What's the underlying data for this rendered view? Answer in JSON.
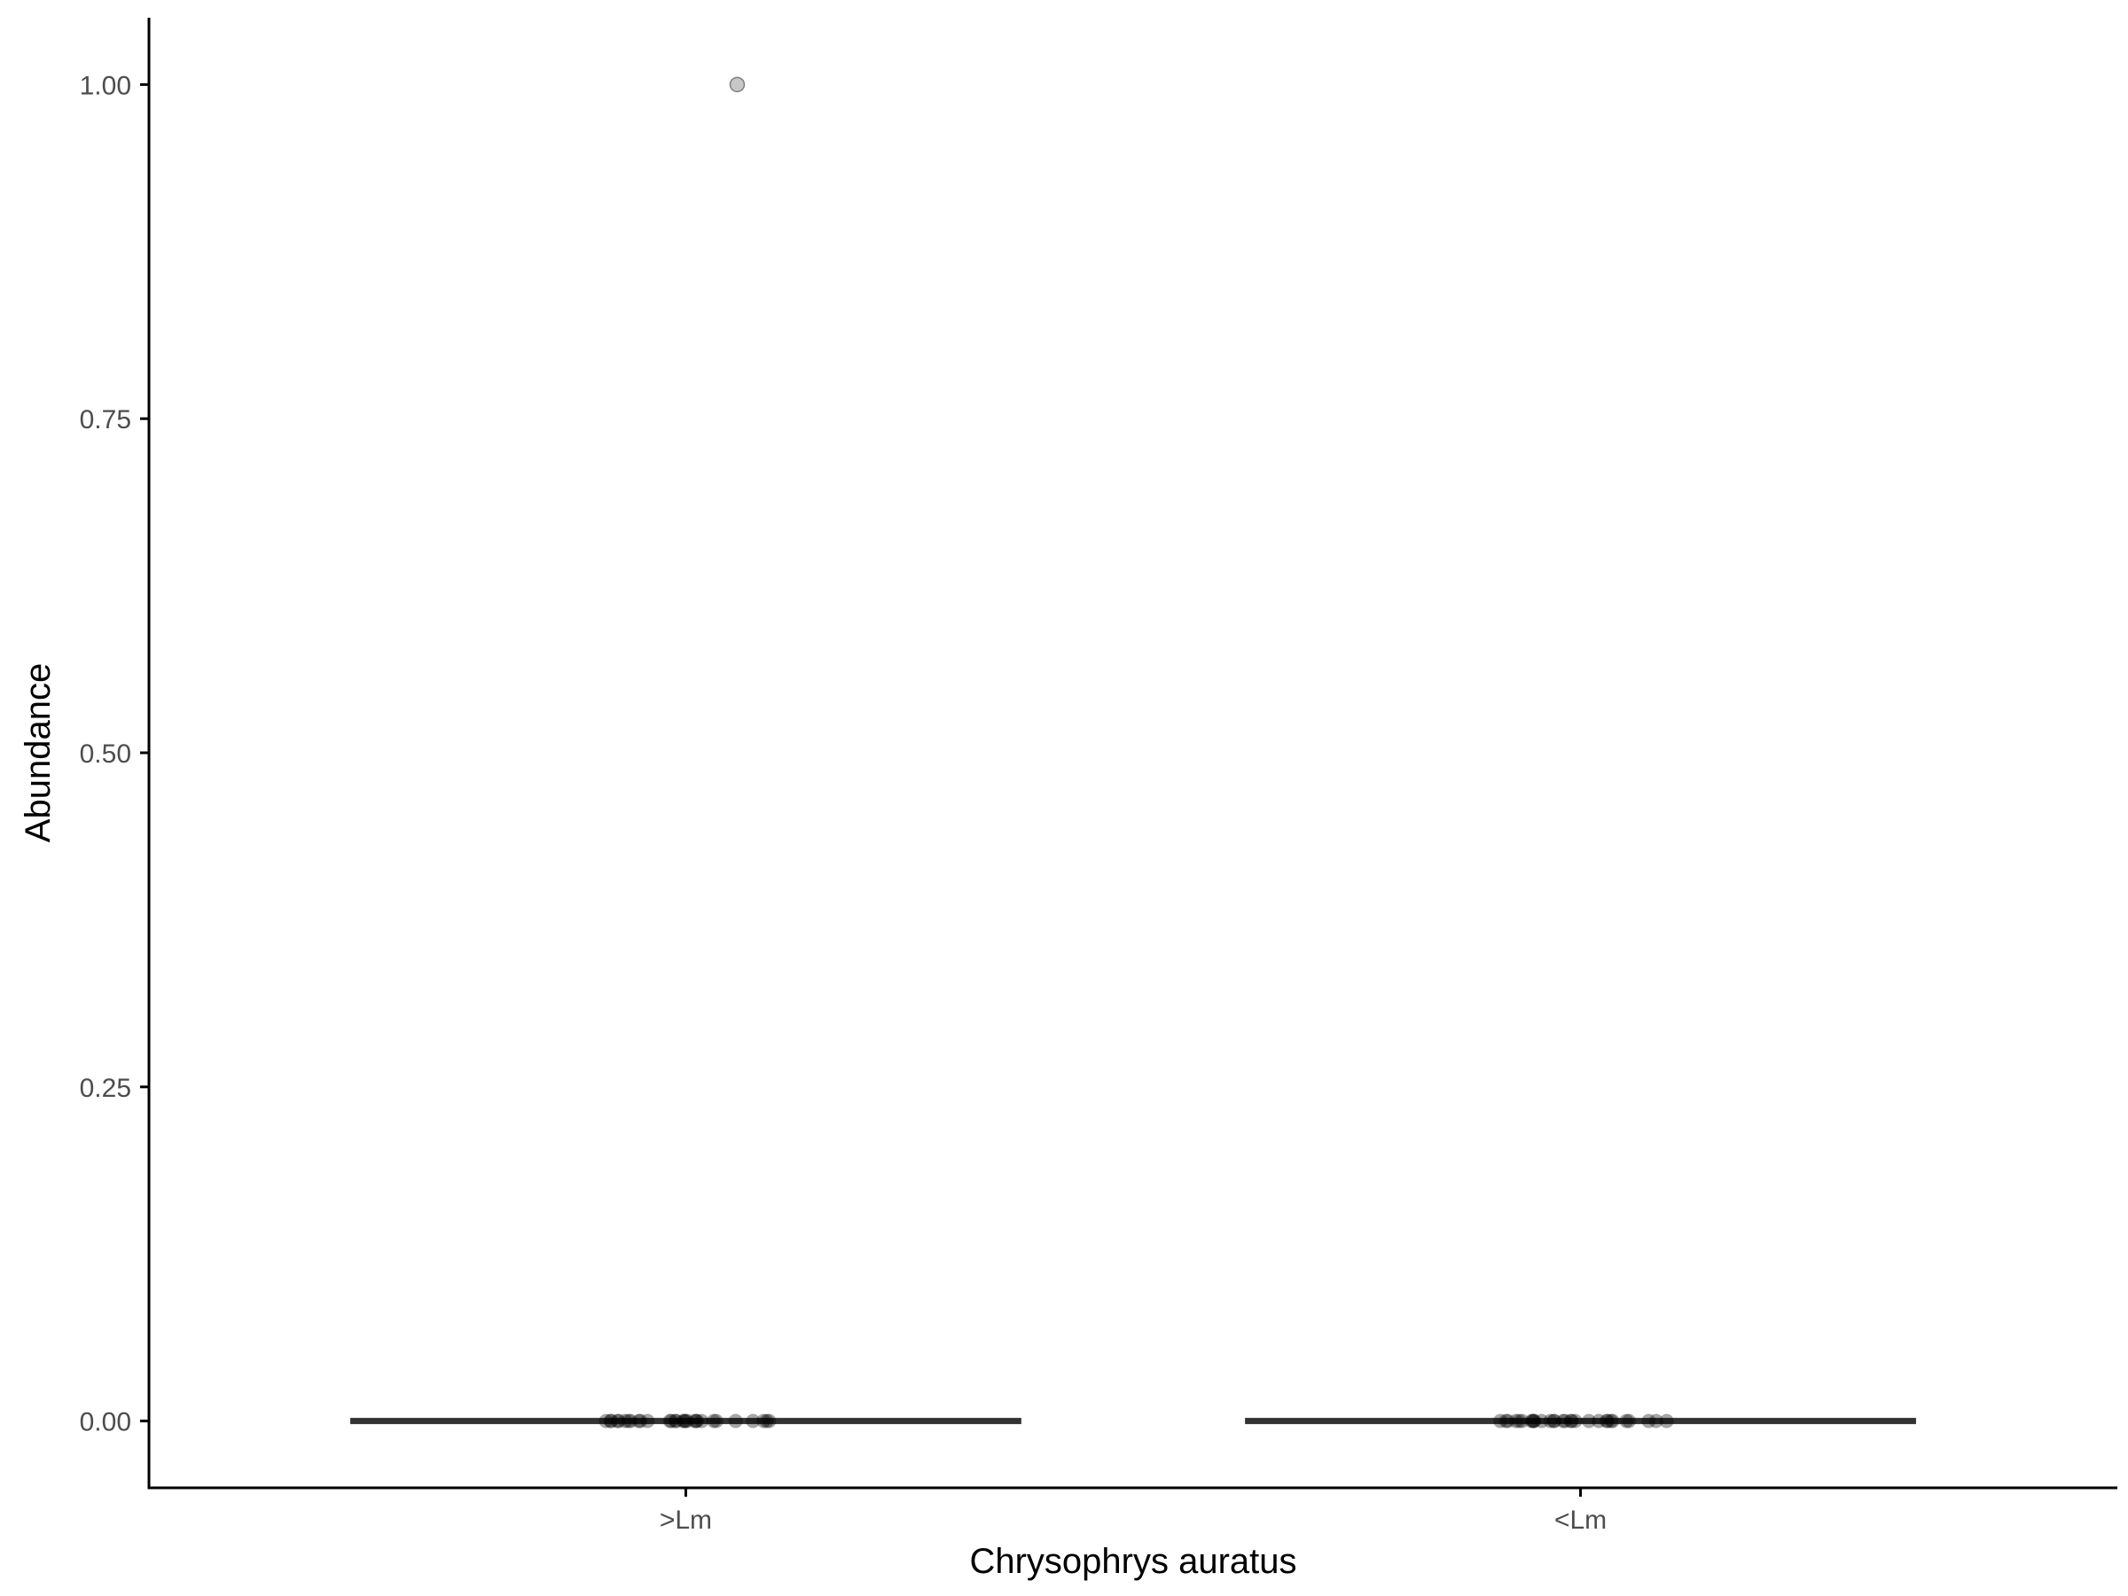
{
  "chart_data": {
    "type": "boxplot",
    "title": "",
    "xlabel": "Chrysophrys auratus",
    "ylabel": "Abundance",
    "categories": [
      ">Lm",
      "<Lm"
    ],
    "ylim": [
      -0.05,
      1.05
    ],
    "yticks": [
      0.0,
      0.25,
      0.5,
      0.75,
      1.0
    ],
    "ytick_labels": [
      "0.00",
      "0.25",
      "0.50",
      "0.75",
      "1.00"
    ],
    "grid": false,
    "boxes": [
      {
        "category": ">Lm",
        "min": 0,
        "q1": 0,
        "median": 0,
        "q3": 0,
        "max": 0,
        "outliers": [
          1.0
        ]
      },
      {
        "category": "<Lm",
        "min": 0,
        "q1": 0,
        "median": 0,
        "q3": 0,
        "max": 0,
        "outliers": []
      }
    ],
    "points": [
      {
        "category": ">Lm",
        "values": [
          0,
          0,
          0,
          0,
          0,
          0,
          0,
          0,
          0,
          0,
          0,
          0,
          0,
          0,
          0,
          0,
          0,
          0,
          0,
          0,
          0,
          0,
          0,
          0,
          0,
          0,
          0,
          0,
          0,
          0
        ]
      },
      {
        "category": "<Lm",
        "values": [
          0,
          0,
          0,
          0,
          0,
          0,
          0,
          0,
          0,
          0,
          0,
          0,
          0,
          0,
          0,
          0,
          0,
          0,
          0,
          0,
          0,
          0,
          0,
          0,
          0,
          0,
          0,
          0,
          0,
          0
        ]
      }
    ],
    "colors": {
      "box": "#333333",
      "points": "#000000",
      "outlier": "#999999",
      "axis": "#000000"
    }
  }
}
